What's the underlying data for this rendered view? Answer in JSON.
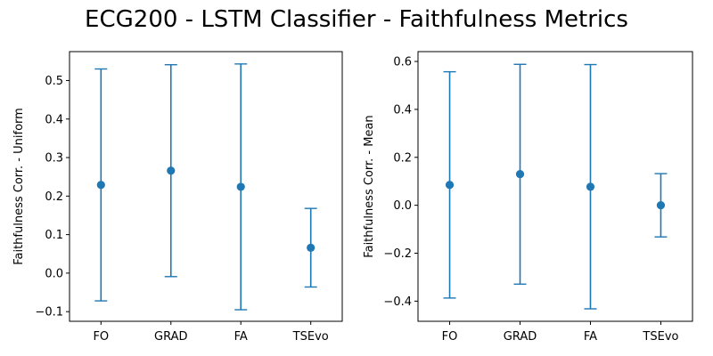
{
  "figure": {
    "title": "ECG200 - LSTM Classifier - Faithfulness Metrics"
  },
  "chart_data": [
    {
      "type": "errorbar",
      "ylabel": "Faithfulness Corr. - Uniform",
      "xlabel": "",
      "categories": [
        "FO",
        "GRAD",
        "FA",
        "TSEvo"
      ],
      "series": [
        {
          "values": [
            0.229,
            0.266,
            0.224,
            0.066
          ],
          "lower": [
            -0.072,
            -0.009,
            -0.095,
            -0.036
          ],
          "upper": [
            0.53,
            0.541,
            0.543,
            0.168
          ],
          "color": "#1f77b4"
        }
      ],
      "ylim": [
        -0.125,
        0.575
      ],
      "yticks": [
        -0.1,
        0.0,
        0.1,
        0.2,
        0.3,
        0.4,
        0.5
      ],
      "ytick_labels": [
        "−0.1",
        "0.0",
        "0.1",
        "0.2",
        "0.3",
        "0.4",
        "0.5"
      ],
      "grid": false
    },
    {
      "type": "errorbar",
      "ylabel": "Faithfulness Corr. - Mean",
      "xlabel": "",
      "categories": [
        "FO",
        "GRAD",
        "FA",
        "TSEvo"
      ],
      "series": [
        {
          "values": [
            0.085,
            0.13,
            0.077,
            0.0
          ],
          "lower": [
            -0.387,
            -0.329,
            -0.432,
            -0.132
          ],
          "upper": [
            0.557,
            0.588,
            0.587,
            0.132
          ],
          "color": "#1f77b4"
        }
      ],
      "ylim": [
        -0.484,
        0.641
      ],
      "yticks": [
        -0.4,
        -0.2,
        0.0,
        0.2,
        0.4,
        0.6
      ],
      "ytick_labels": [
        "−0.4",
        "−0.2",
        "0.0",
        "0.2",
        "0.4",
        "0.6"
      ],
      "grid": false
    }
  ]
}
